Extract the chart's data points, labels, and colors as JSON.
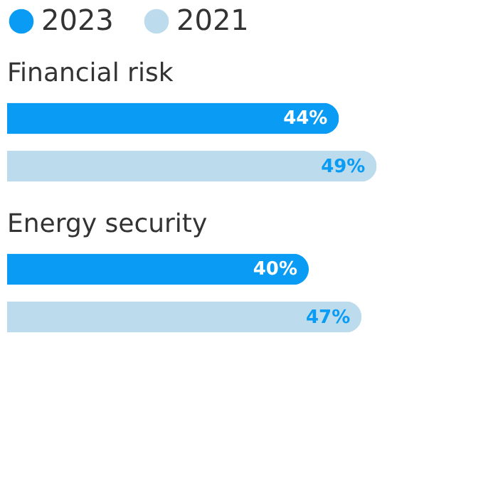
{
  "chart_data": {
    "type": "bar",
    "orientation": "horizontal",
    "categories": [
      "Financial risk",
      "Energy security"
    ],
    "series": [
      {
        "name": "2023",
        "color": "#0a9cf5",
        "values": [
          44,
          40
        ],
        "value_labels": [
          "44%",
          "40%"
        ]
      },
      {
        "name": "2021",
        "color": "#bcdcee",
        "values": [
          49,
          47
        ],
        "value_labels": [
          "49%",
          "47%"
        ]
      }
    ],
    "legend": "top left"
  }
}
